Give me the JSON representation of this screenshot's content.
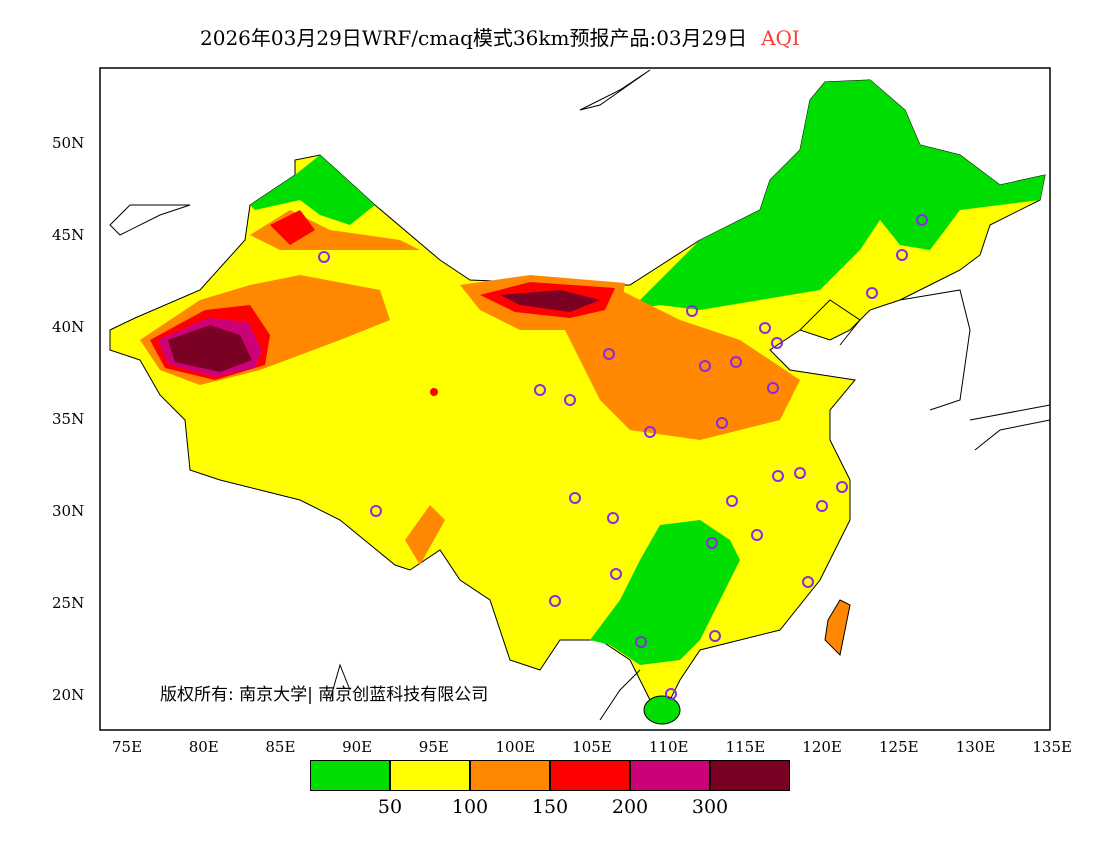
{
  "title": {
    "main": "2026年03月29日WRF/cmaq模式36km预报产品:03月29日",
    "variable": "AQI"
  },
  "copyright": "版权所有: 南京大学| 南京创蓝科技有限公司",
  "x_ticks": [
    "75E",
    "80E",
    "85E",
    "90E",
    "95E",
    "100E",
    "105E",
    "110E",
    "115E",
    "120E",
    "125E",
    "130E",
    "135E"
  ],
  "y_ticks": [
    "50N",
    "45N",
    "40N",
    "35N",
    "30N",
    "25N",
    "20N"
  ],
  "legend": {
    "colors": [
      "#00dd00",
      "#ffff00",
      "#ff8800",
      "#ff0000",
      "#cc0077",
      "#7a0024"
    ],
    "labels": [
      "50",
      "100",
      "150",
      "200",
      "300"
    ]
  },
  "station_marker_color": "#8a2be2"
}
